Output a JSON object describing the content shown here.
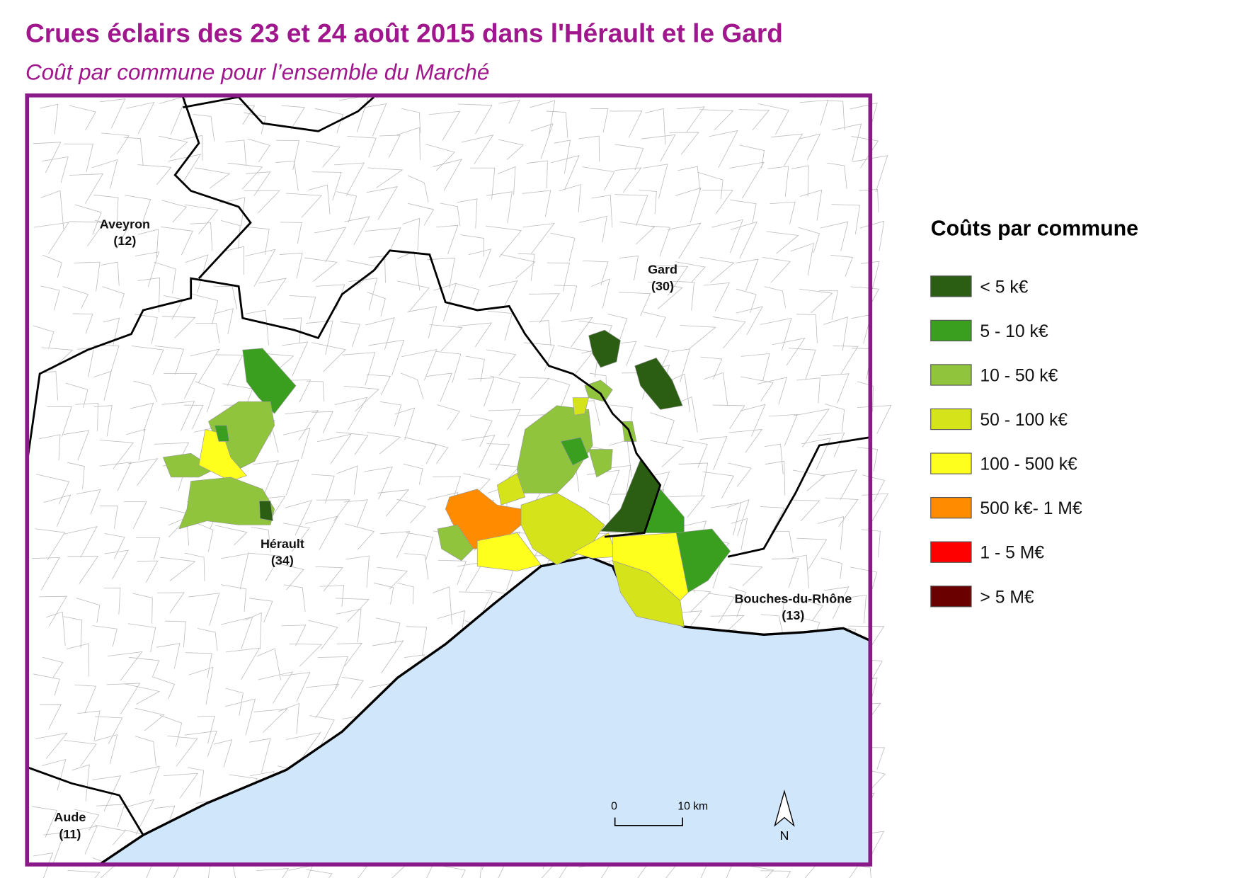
{
  "title": "Crues éclairs des 23 et 24 août 2015 dans l'Hérault et le Gard",
  "subtitle": "Coût par commune pour l’ensemble du Marché",
  "legend": {
    "title": "Coûts par commune",
    "items": [
      {
        "label": "< 5 k€",
        "color": "#2b5e13"
      },
      {
        "label": "5 - 10 k€",
        "color": "#3a9e1f"
      },
      {
        "label": "10 - 50 k€",
        "color": "#8fc43c"
      },
      {
        "label": "50 - 100 k€",
        "color": "#d5e31b"
      },
      {
        "label": "100 - 500 k€",
        "color": "#ffff1e"
      },
      {
        "label": "500 k€- 1 M€",
        "color": "#ff8c00"
      },
      {
        "label": "1 - 5 M€",
        "color": "#ff0000"
      },
      {
        "label": "> 5 M€",
        "color": "#6b0000"
      }
    ]
  },
  "regions": [
    {
      "name": "Aveyron",
      "code": "(12)"
    },
    {
      "name": "Gard",
      "code": "(30)"
    },
    {
      "name": "Hérault",
      "code": "(34)"
    },
    {
      "name": "Bouches-du-Rhône",
      "code": "(13)"
    },
    {
      "name": "Aude",
      "code": "(11)"
    }
  ],
  "scale_bar": {
    "start": "0",
    "end": "10 km"
  },
  "north": "N"
}
